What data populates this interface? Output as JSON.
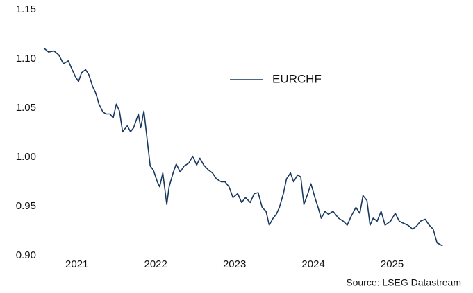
{
  "chart_data": {
    "type": "line",
    "source": "Source: LSEG Datastream",
    "legend": "upper right",
    "xlim": [
      2021,
      2026.2
    ],
    "xticks": [
      {
        "value": 2021.5,
        "label": "2021"
      },
      {
        "value": 2022.5,
        "label": "2022"
      },
      {
        "value": 2023.5,
        "label": "2023"
      },
      {
        "value": 2024.5,
        "label": "2024"
      },
      {
        "value": 2025.5,
        "label": "2025"
      }
    ],
    "ylim": [
      0.9,
      1.15
    ],
    "yticks": [
      {
        "value": 0.9,
        "label": "0.90"
      },
      0.95,
      {
        "value": 1,
        "label": "1.00"
      },
      1.05,
      {
        "value": 1.1,
        "label": "1.10"
      },
      1.15
    ],
    "x": [
      2021.08,
      2021.14,
      2021.21,
      2021.27,
      2021.33,
      2021.39,
      2021.44,
      2021.48,
      2021.52,
      2021.56,
      2021.61,
      2021.65,
      2021.7,
      2021.74,
      2021.78,
      2021.83,
      2021.87,
      2021.92,
      2021.96,
      2022.0,
      2022.04,
      2022.08,
      2022.14,
      2022.18,
      2022.22,
      2022.28,
      2022.31,
      2022.35,
      2022.39,
      2022.43,
      2022.47,
      2022.52,
      2022.55,
      2022.59,
      2022.64,
      2022.67,
      2022.72,
      2022.76,
      2022.81,
      2022.86,
      2022.92,
      2022.97,
      2023.02,
      2023.06,
      2023.11,
      2023.17,
      2023.22,
      2023.27,
      2023.33,
      2023.38,
      2023.43,
      2023.48,
      2023.54,
      2023.59,
      2023.64,
      2023.7,
      2023.75,
      2023.8,
      2023.85,
      2023.9,
      2023.94,
      2023.99,
      2024.03,
      2024.07,
      2024.12,
      2024.16,
      2024.21,
      2024.25,
      2024.3,
      2024.34,
      2024.38,
      2024.43,
      2024.47,
      2024.52,
      2024.56,
      2024.6,
      2024.65,
      2024.69,
      2024.75,
      2024.82,
      2024.88,
      2024.93,
      2024.98,
      2025.04,
      2025.09,
      2025.13,
      2025.18,
      2025.22,
      2025.26,
      2025.31,
      2025.36,
      2025.41,
      2025.48,
      2025.54,
      2025.59,
      2025.64,
      2025.7,
      2025.76,
      2025.81,
      2025.86,
      2025.92,
      2025.97,
      2026.02,
      2026.07,
      2026.14
    ],
    "series": [
      {
        "name": "EURCHF",
        "color": "#17375e",
        "values": [
          1.111,
          1.107,
          1.108,
          1.104,
          1.095,
          1.098,
          1.089,
          1.082,
          1.077,
          1.086,
          1.089,
          1.084,
          1.072,
          1.065,
          1.054,
          1.046,
          1.044,
          1.044,
          1.04,
          1.054,
          1.047,
          1.026,
          1.032,
          1.026,
          1.03,
          1.044,
          1.03,
          1.047,
          1.019,
          0.991,
          0.987,
          0.975,
          0.97,
          0.984,
          0.952,
          0.97,
          0.984,
          0.993,
          0.985,
          0.991,
          0.994,
          1.001,
          0.992,
          0.999,
          0.992,
          0.987,
          0.984,
          0.978,
          0.975,
          0.975,
          0.97,
          0.959,
          0.963,
          0.954,
          0.959,
          0.954,
          0.963,
          0.964,
          0.949,
          0.945,
          0.931,
          0.938,
          0.942,
          0.949,
          0.963,
          0.978,
          0.984,
          0.975,
          0.982,
          0.98,
          0.952,
          0.963,
          0.973,
          0.959,
          0.949,
          0.938,
          0.945,
          0.942,
          0.945,
          0.938,
          0.935,
          0.931,
          0.94,
          0.949,
          0.943,
          0.961,
          0.956,
          0.931,
          0.938,
          0.935,
          0.945,
          0.931,
          0.935,
          0.943,
          0.935,
          0.933,
          0.931,
          0.927,
          0.93,
          0.935,
          0.937,
          0.931,
          0.927,
          0.913,
          0.91
        ]
      }
    ]
  }
}
